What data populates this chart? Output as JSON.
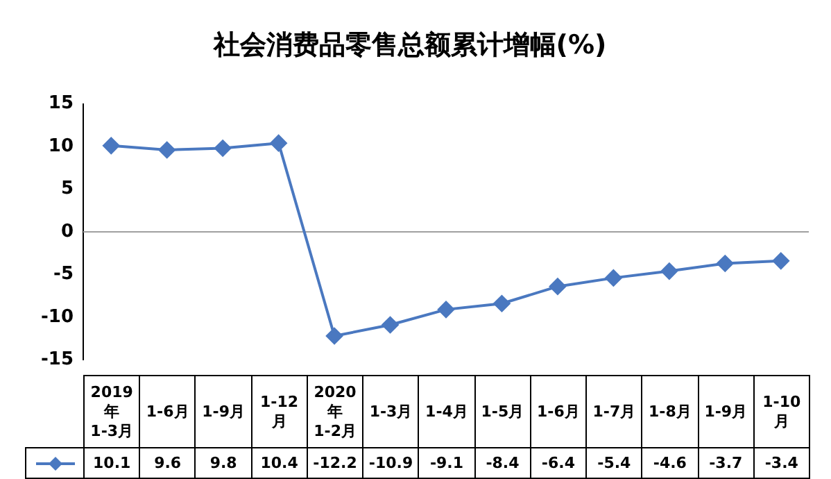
{
  "chart_data": {
    "type": "line",
    "title": "社会消费品零售总额累计增幅(%)",
    "categories": [
      "2019\n年\n1-3月",
      "1-6月",
      "1-9月",
      "1-12\n月",
      "2020\n年\n1-2月",
      "1-3月",
      "1-4月",
      "1-5月",
      "1-6月",
      "1-7月",
      "1-8月",
      "1-9月",
      "1-10\n月"
    ],
    "series": [
      {
        "color": "#4a78c0",
        "values": [
          10.1,
          9.6,
          9.8,
          10.4,
          -12.2,
          -10.9,
          -9.1,
          -8.4,
          -6.4,
          -5.4,
          -4.6,
          -3.7,
          -3.4
        ]
      }
    ],
    "ylim": [
      -15,
      15
    ],
    "yticks": [
      -15,
      -10,
      -5,
      0,
      5,
      10,
      15
    ],
    "grid": false,
    "legend": false,
    "marker": "diamond",
    "line_style": "solid",
    "data_labels": true,
    "ref_lines": [
      {
        "axis": "y",
        "value": 0,
        "color": "#a0a0a0"
      }
    ]
  }
}
